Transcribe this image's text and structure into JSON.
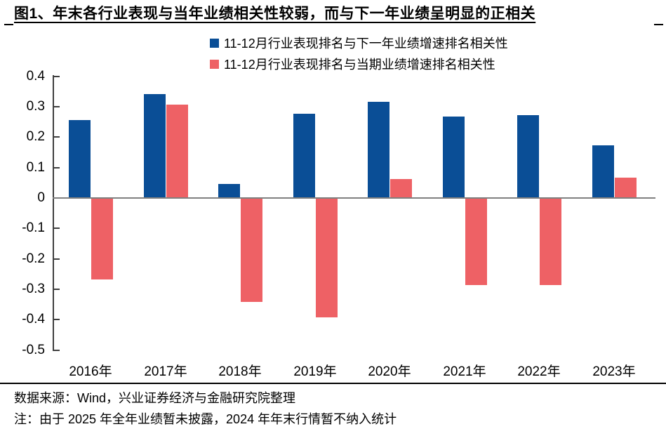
{
  "title": "图1、年末各行业表现与当年业绩相关性较弱，而与下一年业绩呈明显的正相关",
  "colors": {
    "next_year_series": "#0a4e96",
    "current_year_series": "#ee6165",
    "zero_line": "#7f7f7f",
    "axis": "#3f3f3f",
    "divider": "#000000"
  },
  "chart_data": {
    "type": "bar",
    "categories": [
      "2016年",
      "2017年",
      "2018年",
      "2019年",
      "2020年",
      "2021年",
      "2022年",
      "2023年"
    ],
    "series": [
      {
        "name": "11-12月行业表现排名与下一年业绩增速排名相关性",
        "color": "#0a4e96",
        "values": [
          0.255,
          0.34,
          0.045,
          0.275,
          0.315,
          0.265,
          0.27,
          0.17
        ]
      },
      {
        "name": "11-12月行业表现排名与当期业绩增速排名相关性",
        "color": "#ee6165",
        "values": [
          -0.265,
          0.305,
          -0.34,
          -0.39,
          0.06,
          -0.285,
          -0.285,
          0.065
        ]
      }
    ],
    "title": "",
    "xlabel": "",
    "ylabel": "",
    "ylim": [
      -0.5,
      0.4
    ],
    "yticks": [
      "0.4",
      "0.3",
      "0.2",
      "0.1",
      "0",
      "-0.1",
      "-0.2",
      "-0.3",
      "-0.4",
      "-0.5"
    ],
    "grid": false,
    "legend_position": "top-center"
  },
  "footer": {
    "source": "数据来源：Wind，兴业证券经济与金融研究院整理",
    "note": "注：由于 2025 年全年业绩暂未披露，2024 年年末行情暂不纳入统计"
  }
}
